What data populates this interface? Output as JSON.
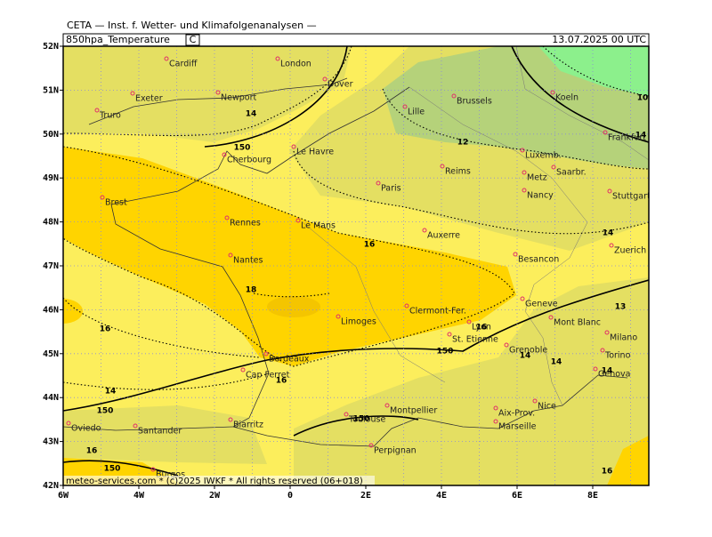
{
  "header": {
    "source": "CETA — Inst. f. Wetter- und Klimafolgenanalysen —",
    "field": "850hpa_Temperature",
    "unit": "C",
    "valid": "13.07.2025 00 UTC"
  },
  "axes": {
    "lat_labels": [
      "52N",
      "51N",
      "50N",
      "49N",
      "48N",
      "47N",
      "46N",
      "45N",
      "44N",
      "43N",
      "42N"
    ],
    "lon_labels": [
      "6W",
      "4W",
      "2W",
      "0",
      "2E",
      "4E",
      "6E",
      "8E"
    ]
  },
  "cities": [
    "Cardiff",
    "London",
    "Dover",
    "Exeter",
    "Newport",
    "Truro",
    "Lille",
    "Brussels",
    "Koeln",
    "Frankfurt",
    "Luxemb.",
    "Saarbr.",
    "Metz",
    "Nancy",
    "Stuttgart",
    "Cherbourg",
    "Le Havre",
    "Paris",
    "Reims",
    "Brest",
    "Rennes",
    "Le Mans",
    "Auxerre",
    "Nantes",
    "Besancon",
    "Zuerich",
    "Geneve",
    "Mont Blanc",
    "Limoges",
    "Clermont-Fer.",
    "Lyon",
    "St. Etienne",
    "Grenoble",
    "Milano",
    "Torino",
    "Genova",
    "Bordeaux",
    "Cap Ferret",
    "Nice",
    "Biarritz",
    "Toulouse",
    "Montpellier",
    "Aix-Prov.",
    "Marseille",
    "Oviedo",
    "Santander",
    "Perpignan",
    "Burgos"
  ],
  "contour_labels": [
    "14",
    "12",
    "14",
    "150",
    "16",
    "14",
    "18",
    "16",
    "13",
    "16",
    "150",
    "14",
    "14",
    "14",
    "16",
    "14",
    "150",
    "150",
    "16",
    "150",
    "16",
    "10"
  ],
  "footer": "meteo-services.com * (c)2025 IWKF * All rights reserved (06+018)"
}
